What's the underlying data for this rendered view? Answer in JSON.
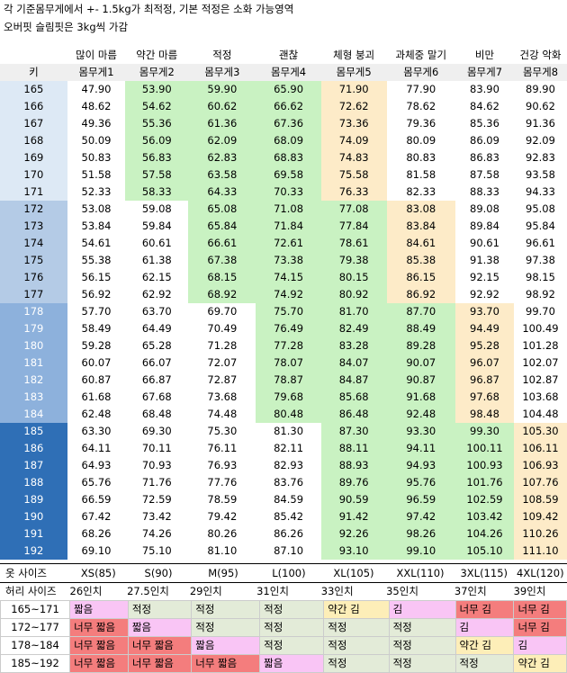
{
  "notes": [
    "각 기준몸무게에서 +- 1.5kg가 최적정, 기본 적정은 소화 가능영역",
    "오버핏 슬림핏은 3kg씩 가감"
  ],
  "header": {
    "categories": [
      "",
      "많이 마름",
      "약간 마름",
      "적정",
      "괜찮",
      "체형 붕괴",
      "과체중 말기",
      "비만",
      "건강 악화"
    ],
    "key_label": "키",
    "weights": [
      "몸무게1",
      "몸무게2",
      "몸무게3",
      "몸무게4",
      "몸무게5",
      "몸무게6",
      "몸무게7",
      "몸무게8"
    ]
  },
  "rows": [
    {
      "h": "165",
      "v": [
        "47.90",
        "53.90",
        "59.90",
        "65.90",
        "71.90",
        "77.90",
        "83.90",
        "89.90"
      ]
    },
    {
      "h": "166",
      "v": [
        "48.62",
        "54.62",
        "60.62",
        "66.62",
        "72.62",
        "78.62",
        "84.62",
        "90.62"
      ]
    },
    {
      "h": "167",
      "v": [
        "49.36",
        "55.36",
        "61.36",
        "67.36",
        "73.36",
        "79.36",
        "85.36",
        "91.36"
      ]
    },
    {
      "h": "168",
      "v": [
        "50.09",
        "56.09",
        "62.09",
        "68.09",
        "74.09",
        "80.09",
        "86.09",
        "92.09"
      ]
    },
    {
      "h": "169",
      "v": [
        "50.83",
        "56.83",
        "62.83",
        "68.83",
        "74.83",
        "80.83",
        "86.83",
        "92.83"
      ]
    },
    {
      "h": "170",
      "v": [
        "51.58",
        "57.58",
        "63.58",
        "69.58",
        "75.58",
        "81.58",
        "87.58",
        "93.58"
      ]
    },
    {
      "h": "171",
      "v": [
        "52.33",
        "58.33",
        "64.33",
        "70.33",
        "76.33",
        "82.33",
        "88.33",
        "94.33"
      ]
    },
    {
      "h": "172",
      "v": [
        "53.08",
        "59.08",
        "65.08",
        "71.08",
        "77.08",
        "83.08",
        "89.08",
        "95.08"
      ]
    },
    {
      "h": "173",
      "v": [
        "53.84",
        "59.84",
        "65.84",
        "71.84",
        "77.84",
        "83.84",
        "89.84",
        "95.84"
      ]
    },
    {
      "h": "174",
      "v": [
        "54.61",
        "60.61",
        "66.61",
        "72.61",
        "78.61",
        "84.61",
        "90.61",
        "96.61"
      ]
    },
    {
      "h": "175",
      "v": [
        "55.38",
        "61.38",
        "67.38",
        "73.38",
        "79.38",
        "85.38",
        "91.38",
        "97.38"
      ]
    },
    {
      "h": "176",
      "v": [
        "56.15",
        "62.15",
        "68.15",
        "74.15",
        "80.15",
        "86.15",
        "92.15",
        "98.15"
      ]
    },
    {
      "h": "177",
      "v": [
        "56.92",
        "62.92",
        "68.92",
        "74.92",
        "80.92",
        "86.92",
        "92.92",
        "98.92"
      ]
    },
    {
      "h": "178",
      "v": [
        "57.70",
        "63.70",
        "69.70",
        "75.70",
        "81.70",
        "87.70",
        "93.70",
        "99.70"
      ]
    },
    {
      "h": "179",
      "v": [
        "58.49",
        "64.49",
        "70.49",
        "76.49",
        "82.49",
        "88.49",
        "94.49",
        "100.49"
      ]
    },
    {
      "h": "180",
      "v": [
        "59.28",
        "65.28",
        "71.28",
        "77.28",
        "83.28",
        "89.28",
        "95.28",
        "101.28"
      ]
    },
    {
      "h": "181",
      "v": [
        "60.07",
        "66.07",
        "72.07",
        "78.07",
        "84.07",
        "90.07",
        "96.07",
        "102.07"
      ]
    },
    {
      "h": "182",
      "v": [
        "60.87",
        "66.87",
        "72.87",
        "78.87",
        "84.87",
        "90.87",
        "96.87",
        "102.87"
      ]
    },
    {
      "h": "183",
      "v": [
        "61.68",
        "67.68",
        "73.68",
        "79.68",
        "85.68",
        "91.68",
        "97.68",
        "103.68"
      ]
    },
    {
      "h": "184",
      "v": [
        "62.48",
        "68.48",
        "74.48",
        "80.48",
        "86.48",
        "92.48",
        "98.48",
        "104.48"
      ]
    },
    {
      "h": "185",
      "v": [
        "63.30",
        "69.30",
        "75.30",
        "81.30",
        "87.30",
        "93.30",
        "99.30",
        "105.30"
      ]
    },
    {
      "h": "186",
      "v": [
        "64.11",
        "70.11",
        "76.11",
        "82.11",
        "88.11",
        "94.11",
        "100.11",
        "106.11"
      ]
    },
    {
      "h": "187",
      "v": [
        "64.93",
        "70.93",
        "76.93",
        "82.93",
        "88.93",
        "94.93",
        "100.93",
        "106.93"
      ]
    },
    {
      "h": "188",
      "v": [
        "65.76",
        "71.76",
        "77.76",
        "83.76",
        "89.76",
        "95.76",
        "101.76",
        "107.76"
      ]
    },
    {
      "h": "189",
      "v": [
        "66.59",
        "72.59",
        "78.59",
        "84.59",
        "90.59",
        "96.59",
        "102.59",
        "108.59"
      ]
    },
    {
      "h": "190",
      "v": [
        "67.42",
        "73.42",
        "79.42",
        "85.42",
        "91.42",
        "97.42",
        "103.42",
        "109.42"
      ]
    },
    {
      "h": "191",
      "v": [
        "68.26",
        "74.26",
        "80.26",
        "86.26",
        "92.26",
        "98.26",
        "104.26",
        "110.26"
      ]
    },
    {
      "h": "192",
      "v": [
        "69.10",
        "75.10",
        "81.10",
        "87.10",
        "93.10",
        "99.10",
        "105.10",
        "111.10"
      ]
    }
  ],
  "sizes": {
    "clothes_label": "옷 사이즈",
    "clothes": [
      "XS(85)",
      "S(90)",
      "M(95)",
      "L(100)",
      "XL(105)",
      "XXL(110)",
      "3XL(115)",
      "4XL(120)"
    ],
    "waist_label": "허리 사이즈",
    "waist": [
      "26인치",
      "27.5인치",
      "29인치",
      "31인치",
      "33인치",
      "35인치",
      "37인치",
      "39인치"
    ]
  },
  "fit": [
    {
      "range": "165~171",
      "v": [
        "짧음",
        "적정",
        "적정",
        "적정",
        "약간 김",
        "김",
        "너무 김",
        "너무 김"
      ]
    },
    {
      "range": "172~177",
      "v": [
        "너무 짧음",
        "짧음",
        "적정",
        "적정",
        "적정",
        "적정",
        "김",
        "너무 김"
      ]
    },
    {
      "range": "178~184",
      "v": [
        "너무 짧음",
        "너무 짧음",
        "짧음",
        "적정",
        "적정",
        "적정",
        "약간 김",
        "김"
      ]
    },
    {
      "range": "185~192",
      "v": [
        "너무 짧음",
        "너무 짧음",
        "너무 짧음",
        "짧음",
        "적정",
        "적정",
        "적정",
        "약간 김"
      ]
    }
  ],
  "colors": {
    "key_light": "#dde9f5",
    "key_mid": "#b4cbe6",
    "key_blue": "#8db1dc",
    "key_dark": "#2f6fb6",
    "green": "#c9f2c2",
    "yellow": "#fdebc8",
    "pink": "#f9c5f5",
    "red": "#f47d7d"
  }
}
